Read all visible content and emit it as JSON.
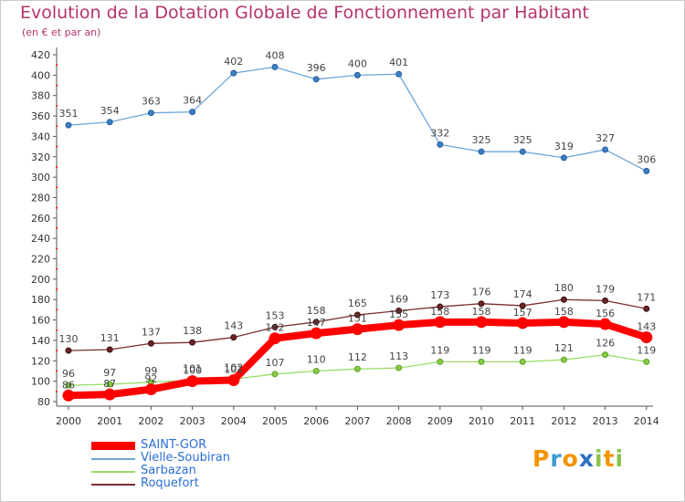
{
  "title": "Evolution de la Dotation Globale de Fonctionnement par Habitant",
  "subtitle": "(en € et par an)",
  "logo": {
    "text": "Proxiti",
    "letters": [
      "P",
      "r",
      "o",
      "x",
      "i",
      "t",
      "i"
    ],
    "colors": [
      "#f29400",
      "#3d9ad1",
      "#f29400",
      "#2e6fc4",
      "#8bc34a",
      "#f29400",
      "#8bc34a"
    ]
  },
  "chart_data": {
    "type": "line",
    "x": [
      "2000",
      "2001",
      "2002",
      "2003",
      "2004",
      "2005",
      "2006",
      "2007",
      "2008",
      "2009",
      "2010",
      "2011",
      "2012",
      "2013",
      "2014"
    ],
    "ylim": [
      80,
      420
    ],
    "yticks": [
      80,
      100,
      120,
      140,
      160,
      180,
      200,
      220,
      240,
      260,
      280,
      300,
      320,
      340,
      360,
      380,
      400,
      420
    ],
    "grid": false,
    "legend_position": "bottom-left",
    "series": [
      {
        "name": "SAINT-GOR",
        "color": "#ff0000",
        "values": [
          86,
          87,
          92,
          100,
          101,
          142,
          147,
          151,
          155,
          158,
          158,
          157,
          158,
          156,
          143
        ]
      },
      {
        "name": "Vielle-Soubiran",
        "color": "#6ea6d8",
        "values": [
          351,
          354,
          363,
          364,
          402,
          408,
          396,
          400,
          401,
          332,
          325,
          325,
          319,
          327,
          306
        ]
      },
      {
        "name": "Sarbazan",
        "color": "#99dd66",
        "values": [
          96,
          97,
          99,
          101,
          102,
          107,
          110,
          112,
          113,
          119,
          119,
          119,
          121,
          126,
          119
        ]
      },
      {
        "name": "Roquefort",
        "color": "#7a2f2f",
        "values": [
          130,
          131,
          137,
          138,
          143,
          153,
          158,
          165,
          169,
          173,
          176,
          174,
          180,
          179,
          171
        ]
      }
    ]
  }
}
